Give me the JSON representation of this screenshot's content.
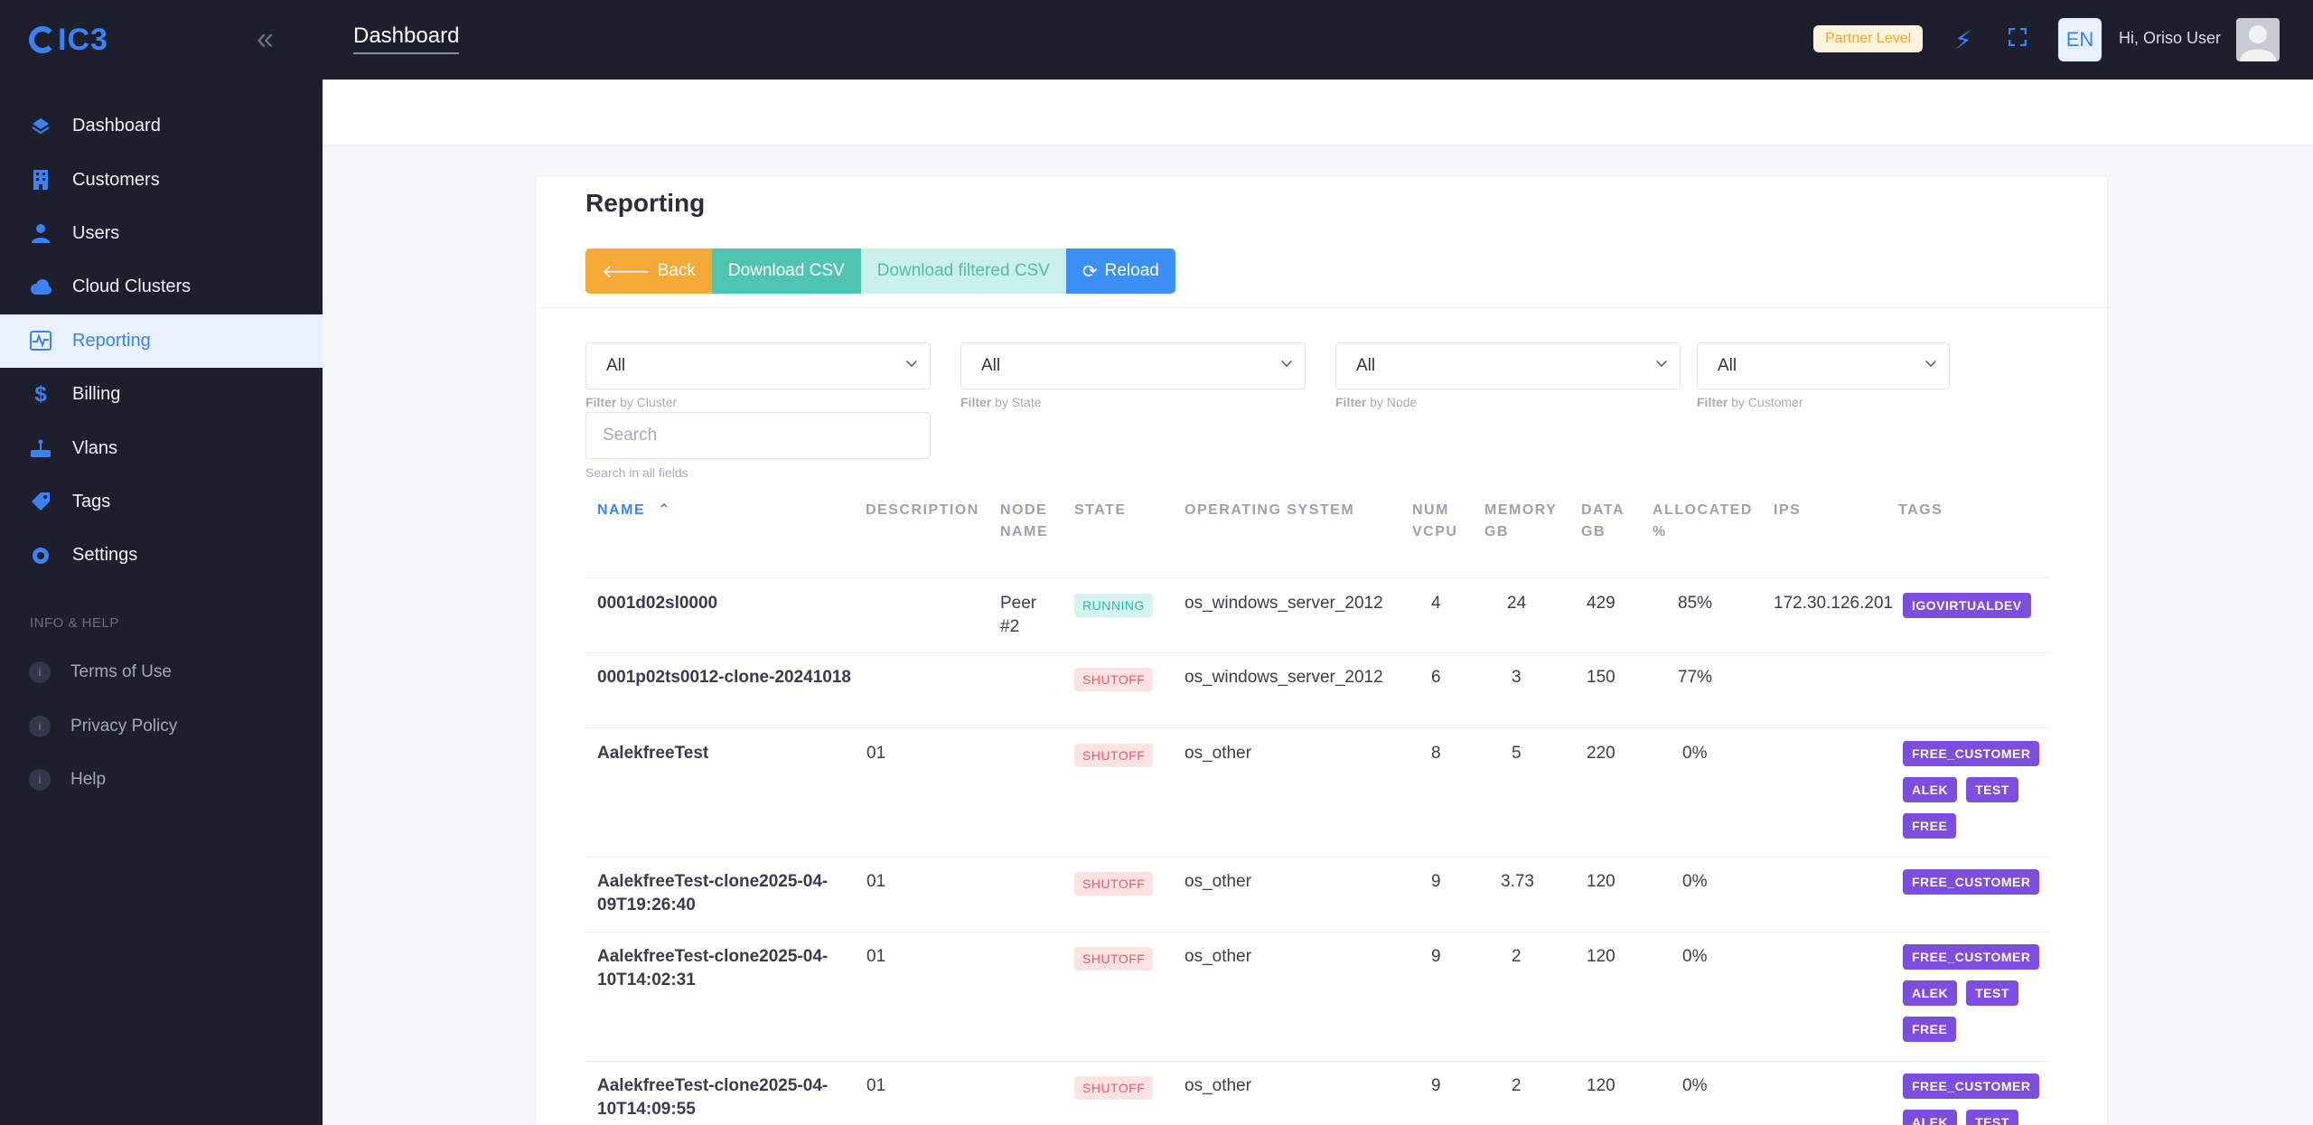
{
  "brand": {
    "logo_text": "IC3"
  },
  "sidebar": {
    "items": [
      {
        "label": "Dashboard",
        "icon": "dashboard-icon"
      },
      {
        "label": "Customers",
        "icon": "building-icon"
      },
      {
        "label": "Users",
        "icon": "user-icon"
      },
      {
        "label": "Cloud Clusters",
        "icon": "cloud-icon"
      },
      {
        "label": "Reporting",
        "icon": "chart-icon",
        "active": true
      },
      {
        "label": "Billing",
        "icon": "dollar-icon"
      },
      {
        "label": "Vlans",
        "icon": "router-icon"
      },
      {
        "label": "Tags",
        "icon": "tag-icon"
      },
      {
        "label": "Settings",
        "icon": "gear-icon"
      }
    ],
    "section_label": "INFO & HELP",
    "help_items": [
      {
        "label": "Terms of Use",
        "icon": "info-icon"
      },
      {
        "label": "Privacy Policy",
        "icon": "info-icon"
      },
      {
        "label": "Help",
        "icon": "info-icon"
      }
    ]
  },
  "header": {
    "title": "Dashboard",
    "partner_badge": "Partner Level",
    "language": "EN",
    "greeting": "Hi, Oriso User"
  },
  "report": {
    "title": "Reporting",
    "buttons": {
      "back": "Back",
      "download_csv": "Download CSV",
      "download_filtered_csv": "Download filtered CSV",
      "reload": "Reload"
    },
    "filters": [
      {
        "value": "All",
        "hint_bold": "Filter",
        "hint": " by Cluster"
      },
      {
        "value": "All",
        "hint_bold": "Filter",
        "hint": " by State"
      },
      {
        "value": "All",
        "hint_bold": "Filter",
        "hint": " by Node"
      },
      {
        "value": "All",
        "hint_bold": "Filter",
        "hint": " by Customer"
      }
    ],
    "search": {
      "placeholder": "Search",
      "hint": "Search in all fields"
    },
    "columns": {
      "name": "NAME",
      "description": "DESCRIPTION",
      "node_name": "NODE NAME",
      "state": "STATE",
      "os": "OPERATING SYSTEM",
      "vcpu": "NUM VCPU",
      "memory": "MEMORY GB",
      "data": "DATA GB",
      "allocated": "ALLOCATED %",
      "ips": "IPS",
      "tags": "TAGS"
    },
    "rows": [
      {
        "name": "0001d02sl0000",
        "description": "",
        "node": "Peer #2",
        "state": "RUNNING",
        "os": "os_windows_server_2012",
        "vcpu": "4",
        "memory": "24",
        "data": "429",
        "allocated": "85%",
        "ips": "172.30.126.201",
        "tags": [
          "IGOVIRTUALDEV"
        ]
      },
      {
        "name": "0001p02ts0012-clone-20241018",
        "description": "",
        "node": "",
        "state": "SHUTOFF",
        "os": "os_windows_server_2012",
        "vcpu": "6",
        "memory": "3",
        "data": "150",
        "allocated": "77%",
        "ips": "",
        "tags": []
      },
      {
        "name": "AalekfreeTest",
        "description": "01",
        "node": "",
        "state": "SHUTOFF",
        "os": "os_other",
        "vcpu": "8",
        "memory": "5",
        "data": "220",
        "allocated": "0%",
        "ips": "",
        "tags": [
          "FREE_CUSTOMER",
          "ALEK",
          "TEST",
          "FREE"
        ]
      },
      {
        "name": "AalekfreeTest-clone2025-04-09T19:26:40",
        "description": "01",
        "node": "",
        "state": "SHUTOFF",
        "os": "os_other",
        "vcpu": "9",
        "memory": "3.73",
        "data": "120",
        "allocated": "0%",
        "ips": "",
        "tags": [
          "FREE_CUSTOMER"
        ]
      },
      {
        "name": "AalekfreeTest-clone2025-04-10T14:02:31",
        "description": "01",
        "node": "",
        "state": "SHUTOFF",
        "os": "os_other",
        "vcpu": "9",
        "memory": "2",
        "data": "120",
        "allocated": "0%",
        "ips": "",
        "tags": [
          "FREE_CUSTOMER",
          "ALEK",
          "TEST",
          "FREE"
        ]
      },
      {
        "name": "AalekfreeTest-clone2025-04-10T14:09:55",
        "description": "01",
        "node": "",
        "state": "SHUTOFF",
        "os": "os_other",
        "vcpu": "9",
        "memory": "2",
        "data": "120",
        "allocated": "0%",
        "ips": "",
        "tags": [
          "FREE_CUSTOMER",
          "ALEK",
          "TEST"
        ]
      }
    ]
  },
  "colors": {
    "sidebar_bg": "#1e1f2d",
    "accent": "#3b82f6",
    "running": "#2fb9a2",
    "shutoff": "#e35d6a",
    "tag": "#7c4dde"
  }
}
